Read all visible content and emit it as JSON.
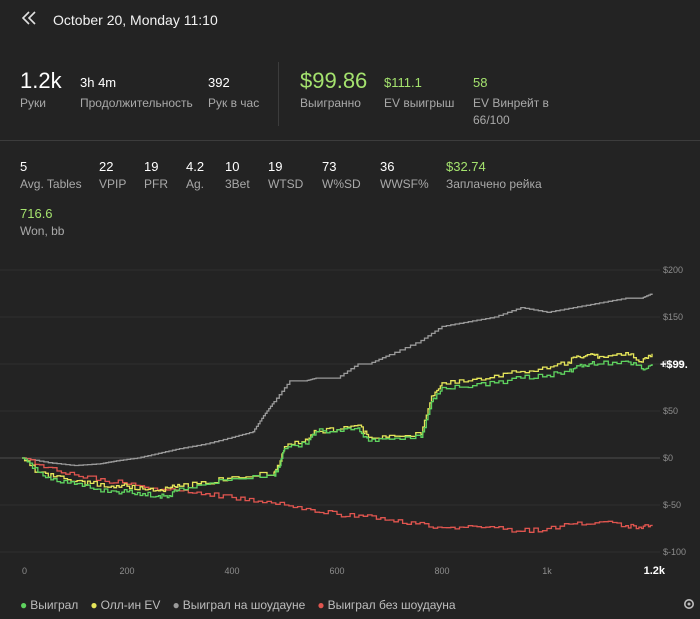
{
  "header": {
    "title": "October 20, Monday 11:10"
  },
  "summary": [
    {
      "value": "1.2k",
      "label": "Руки"
    },
    {
      "value": "3h 4m",
      "label": "Продолжительность"
    },
    {
      "value": "392",
      "label": "Рук в час"
    },
    {
      "value": "$99.86",
      "label": "Выигранно"
    },
    {
      "value": "$111.1",
      "label": "EV выигрыш"
    },
    {
      "value": "58",
      "label_line1": "EV Винрейт в",
      "label_line2": "66/100"
    }
  ],
  "stats": [
    {
      "value": "5",
      "label": "Avg. Tables"
    },
    {
      "value": "22",
      "label": "VPIP"
    },
    {
      "value": "19",
      "label": "PFR"
    },
    {
      "value": "4.2",
      "label": "Ag."
    },
    {
      "value": "10",
      "label": "3Bet"
    },
    {
      "value": "19",
      "label": "WTSD"
    },
    {
      "value": "73",
      "label": "W%SD"
    },
    {
      "value": "36",
      "label": "WWSF%"
    },
    {
      "value": "$32.74",
      "label": "Заплачено рейка"
    }
  ],
  "won_bb": {
    "value": "716.6",
    "label": "Won, bb"
  },
  "colors": {
    "won": "#5fd35f",
    "ev": "#e6e65a",
    "showdown": "#9a9a9a",
    "non_showdown": "#e0554f",
    "accent": "#a4e26e"
  },
  "chart_data": {
    "type": "line",
    "xlim": [
      0,
      1200
    ],
    "ylim": [
      -100,
      200
    ],
    "x_ticks": [
      "0",
      "200",
      "400",
      "600",
      "800",
      "1k",
      "1.2k"
    ],
    "x_tick_values": [
      0,
      200,
      400,
      600,
      800,
      1000,
      1200
    ],
    "y_ticks": [
      "$200",
      "$150",
      "$100",
      "$50",
      "$0",
      "$-50",
      "$-100"
    ],
    "y_tick_values": [
      200,
      150,
      100,
      50,
      0,
      -50,
      -100
    ],
    "end_label": "+$99.",
    "series": [
      {
        "name": "Выиграл",
        "key": "won",
        "x": [
          0,
          30,
          60,
          100,
          130,
          170,
          200,
          230,
          260,
          280,
          300,
          350,
          400,
          480,
          490,
          500,
          540,
          560,
          600,
          640,
          660,
          700,
          760,
          780,
          800,
          850,
          900,
          950,
          1000,
          1040,
          1060,
          1080,
          1100,
          1150,
          1180,
          1200
        ],
        "y": [
          0,
          -15,
          -22,
          -28,
          -32,
          -35,
          -36,
          -38,
          -40,
          -40,
          -32,
          -28,
          -22,
          -18,
          -10,
          10,
          15,
          28,
          30,
          32,
          18,
          20,
          22,
          60,
          75,
          75,
          80,
          85,
          88,
          92,
          98,
          100,
          100,
          103,
          95,
          100
        ]
      },
      {
        "name": "Олл-ин EV",
        "key": "ev",
        "x": [
          0,
          30,
          60,
          100,
          130,
          170,
          200,
          230,
          260,
          280,
          300,
          350,
          400,
          480,
          490,
          500,
          540,
          560,
          600,
          640,
          660,
          700,
          760,
          780,
          800,
          850,
          900,
          950,
          1000,
          1040,
          1060,
          1080,
          1100,
          1150,
          1180,
          1200
        ],
        "y": [
          0,
          -15,
          -20,
          -25,
          -27,
          -30,
          -30,
          -33,
          -35,
          -32,
          -30,
          -27,
          -20,
          -15,
          -8,
          12,
          20,
          28,
          30,
          35,
          22,
          24,
          25,
          66,
          80,
          82,
          88,
          92,
          95,
          102,
          108,
          110,
          108,
          112,
          102,
          111
        ]
      },
      {
        "name": "Выиграл на шоудауне",
        "key": "showdown",
        "x": [
          0,
          50,
          100,
          150,
          180,
          220,
          260,
          300,
          350,
          400,
          440,
          460,
          480,
          510,
          540,
          560,
          600,
          640,
          660,
          700,
          760,
          800,
          850,
          900,
          950,
          1000,
          1050,
          1100,
          1150,
          1180,
          1200
        ],
        "y": [
          0,
          -5,
          -8,
          -6,
          -3,
          0,
          5,
          10,
          15,
          22,
          28,
          45,
          60,
          82,
          82,
          85,
          85,
          100,
          100,
          110,
          125,
          140,
          145,
          150,
          160,
          155,
          160,
          165,
          170,
          170,
          175
        ]
      },
      {
        "name": "Выиграл без шоудауна",
        "key": "non_showdown",
        "x": [
          0,
          50,
          100,
          150,
          200,
          250,
          300,
          350,
          400,
          450,
          500,
          550,
          600,
          650,
          700,
          750,
          800,
          850,
          900,
          950,
          1000,
          1050,
          1100,
          1150,
          1180,
          1200
        ],
        "y": [
          0,
          -10,
          -18,
          -22,
          -28,
          -32,
          -35,
          -38,
          -42,
          -46,
          -50,
          -55,
          -60,
          -62,
          -66,
          -70,
          -74,
          -72,
          -74,
          -78,
          -75,
          -70,
          -68,
          -72,
          -75,
          -71
        ]
      }
    ]
  },
  "legend": [
    {
      "label": "Выиграл",
      "key": "won"
    },
    {
      "label": "Олл-ин EV",
      "key": "ev"
    },
    {
      "label": "Выиграл на шоудауне",
      "key": "showdown"
    },
    {
      "label": "Выиграл без шоудауна",
      "key": "non_showdown"
    }
  ]
}
